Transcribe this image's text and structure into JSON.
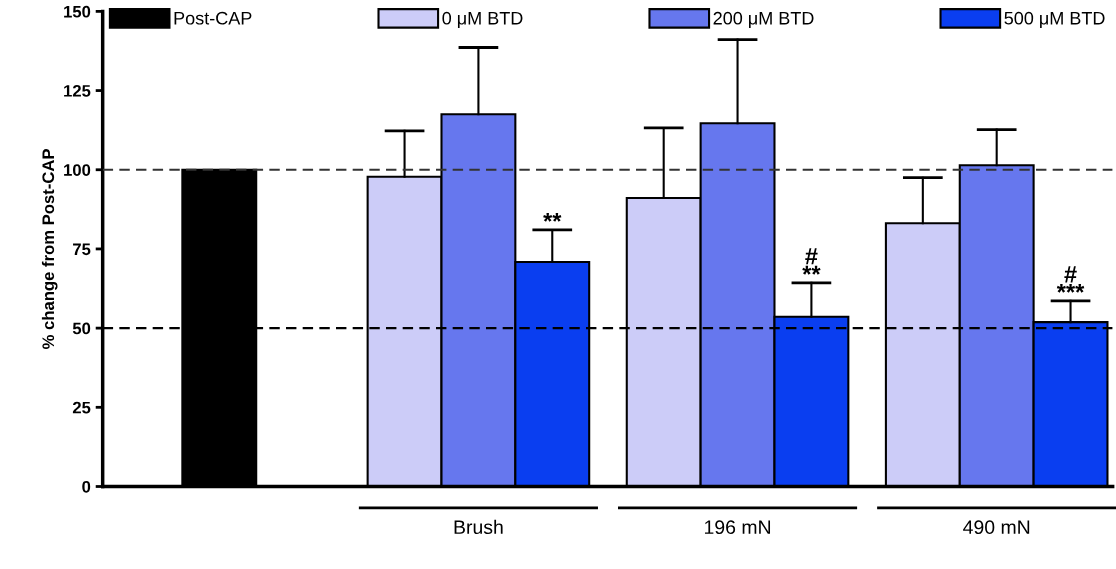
{
  "chart_data": {
    "type": "bar",
    "ylabel": "% change from Post-CAP",
    "categories": [
      null,
      "Brush",
      "196 mN",
      "490 mN"
    ],
    "series": [
      {
        "name": "Post-CAP",
        "color": "#000000",
        "values": [
          100,
          null,
          null,
          null
        ]
      },
      {
        "name": "0 μM BTD",
        "color": "#ccccf8",
        "values": [
          null,
          97.8,
          91.1,
          83.1
        ],
        "errors": [
          null,
          [
            97.8,
            112.3
          ],
          [
            91.1,
            113.2
          ],
          [
            83.1,
            97.5
          ]
        ]
      },
      {
        "name": "200 μM BTD",
        "color": "#6677ee",
        "values": [
          null,
          117.5,
          114.7,
          101.4
        ],
        "errors": [
          null,
          [
            117.5,
            138.6
          ],
          [
            114.7,
            141.1
          ],
          [
            101.4,
            112.7
          ]
        ]
      },
      {
        "name": "500 μM BTD",
        "color": "#0a3ef0",
        "values": [
          null,
          70.9,
          53.6,
          51.9
        ],
        "errors": [
          null,
          [
            70.9,
            81.0
          ],
          [
            53.6,
            64.3
          ],
          [
            51.9,
            58.6
          ]
        ]
      }
    ],
    "ylim": [
      0,
      150
    ],
    "yticks": [
      0,
      25,
      50,
      75,
      100,
      125,
      150
    ],
    "ref_lines": [
      {
        "axis": "y",
        "value": 100,
        "line_style": "dashed",
        "color": "#333333"
      },
      {
        "axis": "y",
        "value": 50,
        "line_style": "dashed",
        "color": "#000000"
      }
    ],
    "annotations": [
      "**",
      "#\n**",
      "#\n***"
    ],
    "legend": "top",
    "grid": false
  }
}
